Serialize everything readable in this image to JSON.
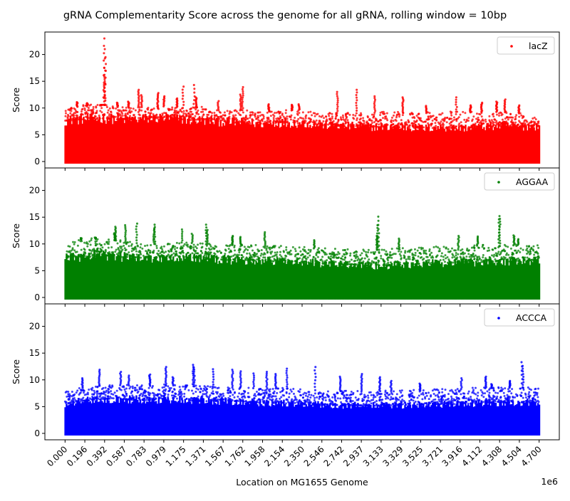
{
  "chart_data": {
    "type": "scatter",
    "title": "gRNA Complementarity Score across the genome for all gRNA, rolling window = 10bp",
    "xlabel": "Location on MG1655 Genome",
    "x_offset_label": "1e6",
    "ylabel": "Score",
    "x_unit_multiplier": 1000000,
    "xlim": [
      -0.2,
      4.9
    ],
    "ylim": [
      -1.2,
      24.2
    ],
    "x_ticks": [
      "0.000",
      "0.196",
      "0.392",
      "0.587",
      "0.783",
      "0.979",
      "1.175",
      "1.371",
      "1.567",
      "1.762",
      "1.958",
      "2.154",
      "2.350",
      "2.546",
      "2.742",
      "2.937",
      "3.133",
      "3.329",
      "3.525",
      "3.721",
      "3.916",
      "4.112",
      "4.308",
      "4.504",
      "4.700"
    ],
    "y_ticks": [
      "0",
      "5",
      "10",
      "15",
      "20"
    ],
    "grid": false,
    "legend_position": "top-right",
    "panels": [
      {
        "name": "lacZ",
        "color": "#ff0000",
        "dense_band_top": [
          7.6,
          7.9,
          8.0,
          7.8,
          7.9,
          8.1,
          7.8,
          7.6,
          7.4,
          7.2,
          7.0,
          7.2,
          7.1,
          6.8,
          6.6,
          6.5,
          6.4,
          6.4,
          6.2,
          6.3,
          6.2,
          6.5,
          6.6,
          6.5,
          6.6
        ],
        "sparse_top": [
          9.8,
          10.5,
          10.6,
          10.0,
          10.2,
          10.3,
          10.0,
          10.1,
          9.4,
          9.6,
          9.3,
          9.5,
          9.6,
          9.0,
          9.1,
          9.0,
          9.2,
          9.1,
          9.0,
          9.2,
          9.3,
          9.1,
          9.3,
          9.0,
          7.9
        ],
        "peaks": [
          {
            "x": 0.12,
            "y": 11.1
          },
          {
            "x": 0.22,
            "y": 10.9
          },
          {
            "x": 0.36,
            "y": 10.5
          },
          {
            "x": 0.385,
            "y": 23.0
          },
          {
            "x": 0.39,
            "y": 21.0
          },
          {
            "x": 0.4,
            "y": 19.5
          },
          {
            "x": 0.395,
            "y": 17.0
          },
          {
            "x": 0.39,
            "y": 15.0
          },
          {
            "x": 0.52,
            "y": 11.0
          },
          {
            "x": 0.63,
            "y": 11.2
          },
          {
            "x": 0.73,
            "y": 13.4
          },
          {
            "x": 0.76,
            "y": 12.4
          },
          {
            "x": 0.92,
            "y": 12.8
          },
          {
            "x": 0.98,
            "y": 12.2
          },
          {
            "x": 1.11,
            "y": 11.8
          },
          {
            "x": 1.17,
            "y": 14.0
          },
          {
            "x": 1.28,
            "y": 14.3
          },
          {
            "x": 1.3,
            "y": 12.0
          },
          {
            "x": 1.52,
            "y": 11.3
          },
          {
            "x": 1.76,
            "y": 13.9
          },
          {
            "x": 1.74,
            "y": 12.5
          },
          {
            "x": 2.02,
            "y": 10.7
          },
          {
            "x": 2.25,
            "y": 10.6
          },
          {
            "x": 2.32,
            "y": 10.7
          },
          {
            "x": 2.7,
            "y": 13.0
          },
          {
            "x": 2.89,
            "y": 13.4
          },
          {
            "x": 3.07,
            "y": 12.2
          },
          {
            "x": 3.35,
            "y": 12.0
          },
          {
            "x": 3.58,
            "y": 10.4
          },
          {
            "x": 3.88,
            "y": 12.0
          },
          {
            "x": 4.02,
            "y": 10.5
          },
          {
            "x": 4.13,
            "y": 11.0
          },
          {
            "x": 4.28,
            "y": 11.2
          },
          {
            "x": 4.36,
            "y": 11.6
          },
          {
            "x": 4.5,
            "y": 10.5
          }
        ]
      },
      {
        "name": "AGGAA",
        "color": "#008000",
        "dense_band_top": [
          7.4,
          7.6,
          7.7,
          7.5,
          7.4,
          7.4,
          7.5,
          7.2,
          7.0,
          6.9,
          6.8,
          6.7,
          6.5,
          6.3,
          6.2,
          6.0,
          5.9,
          6.0,
          6.2,
          6.4,
          6.5,
          6.6,
          6.7,
          6.7,
          6.8
        ],
        "sparse_top": [
          10.4,
          10.9,
          11.0,
          10.4,
          10.0,
          10.0,
          10.3,
          10.0,
          9.7,
          9.9,
          9.6,
          9.5,
          9.3,
          9.1,
          8.9,
          8.9,
          8.9,
          9.1,
          9.3,
          9.4,
          9.5,
          9.7,
          9.6,
          9.8,
          9.6
        ],
        "peaks": [
          {
            "x": 0.16,
            "y": 11.1
          },
          {
            "x": 0.3,
            "y": 11.2
          },
          {
            "x": 0.49,
            "y": 12.0
          },
          {
            "x": 0.5,
            "y": 13.2
          },
          {
            "x": 0.6,
            "y": 13.5
          },
          {
            "x": 0.71,
            "y": 13.8
          },
          {
            "x": 0.89,
            "y": 13.6
          },
          {
            "x": 0.88,
            "y": 12.9
          },
          {
            "x": 1.16,
            "y": 12.7
          },
          {
            "x": 1.26,
            "y": 11.9
          },
          {
            "x": 1.4,
            "y": 13.6
          },
          {
            "x": 1.41,
            "y": 12.6
          },
          {
            "x": 1.66,
            "y": 11.5
          },
          {
            "x": 1.74,
            "y": 11.3
          },
          {
            "x": 1.98,
            "y": 12.2
          },
          {
            "x": 2.47,
            "y": 10.7
          },
          {
            "x": 3.09,
            "y": 11.5
          },
          {
            "x": 3.11,
            "y": 15.1
          },
          {
            "x": 3.1,
            "y": 13.5
          },
          {
            "x": 3.31,
            "y": 11.0
          },
          {
            "x": 3.9,
            "y": 11.5
          },
          {
            "x": 4.09,
            "y": 11.4
          },
          {
            "x": 4.31,
            "y": 15.2
          },
          {
            "x": 4.3,
            "y": 14.6
          },
          {
            "x": 4.45,
            "y": 11.6
          },
          {
            "x": 4.49,
            "y": 10.9
          }
        ]
      },
      {
        "name": "ACCCA",
        "color": "#0000ff",
        "dense_band_top": [
          5.5,
          6.1,
          6.4,
          6.3,
          6.2,
          6.3,
          6.2,
          6.0,
          6.0,
          5.9,
          5.7,
          5.6,
          5.4,
          5.3,
          5.2,
          5.2,
          5.1,
          5.2,
          5.3,
          5.4,
          5.5,
          5.6,
          5.7,
          5.8,
          5.7
        ],
        "sparse_top": [
          7.8,
          8.6,
          9.0,
          9.0,
          8.8,
          9.0,
          8.9,
          8.7,
          8.6,
          8.5,
          8.4,
          8.4,
          8.2,
          8.0,
          7.9,
          7.8,
          7.9,
          7.9,
          8.0,
          8.2,
          8.3,
          8.4,
          8.5,
          8.6,
          8.3
        ],
        "peaks": [
          {
            "x": 0.17,
            "y": 10.3
          },
          {
            "x": 0.34,
            "y": 11.9
          },
          {
            "x": 0.55,
            "y": 11.5
          },
          {
            "x": 0.63,
            "y": 10.8
          },
          {
            "x": 0.84,
            "y": 11.0
          },
          {
            "x": 1.0,
            "y": 12.4
          },
          {
            "x": 1.07,
            "y": 10.5
          },
          {
            "x": 1.27,
            "y": 12.8
          },
          {
            "x": 1.28,
            "y": 12.3
          },
          {
            "x": 1.47,
            "y": 12.0
          },
          {
            "x": 1.66,
            "y": 11.9
          },
          {
            "x": 1.74,
            "y": 11.6
          },
          {
            "x": 1.87,
            "y": 11.2
          },
          {
            "x": 2.0,
            "y": 11.5
          },
          {
            "x": 2.09,
            "y": 11.1
          },
          {
            "x": 2.2,
            "y": 12.1
          },
          {
            "x": 2.48,
            "y": 12.4
          },
          {
            "x": 2.73,
            "y": 10.6
          },
          {
            "x": 2.94,
            "y": 11.1
          },
          {
            "x": 3.12,
            "y": 10.5
          },
          {
            "x": 3.23,
            "y": 9.8
          },
          {
            "x": 3.52,
            "y": 9.3
          },
          {
            "x": 3.93,
            "y": 10.3
          },
          {
            "x": 4.17,
            "y": 10.6
          },
          {
            "x": 4.23,
            "y": 9.2
          },
          {
            "x": 4.41,
            "y": 9.8
          },
          {
            "x": 4.53,
            "y": 13.3
          },
          {
            "x": 4.54,
            "y": 12.6
          }
        ]
      }
    ]
  }
}
